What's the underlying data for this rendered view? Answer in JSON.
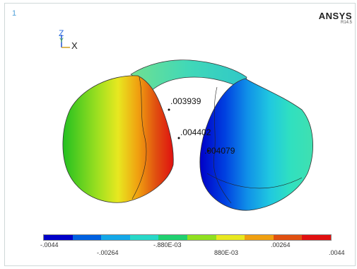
{
  "window": {
    "number": "1"
  },
  "brand": {
    "name": "ANSYS",
    "release": "R14.5"
  },
  "triad": {
    "z_label": "Z",
    "y_label": "Y",
    "x_label": "X"
  },
  "probes": [
    {
      "value": ".003939"
    },
    {
      "value": ".004402"
    },
    {
      "value": ".004079"
    }
  ],
  "legend": {
    "colors": [
      "#0000c8",
      "#0060e0",
      "#14a8e8",
      "#28d8c8",
      "#20d070",
      "#90e020",
      "#e8e820",
      "#f0a010",
      "#e05010",
      "#e01010"
    ],
    "labels_top": [
      "-.0044",
      "-.880E-03",
      ".00264"
    ],
    "labels_bottom": [
      "-.00264",
      "880E-03",
      ".0044"
    ]
  }
}
